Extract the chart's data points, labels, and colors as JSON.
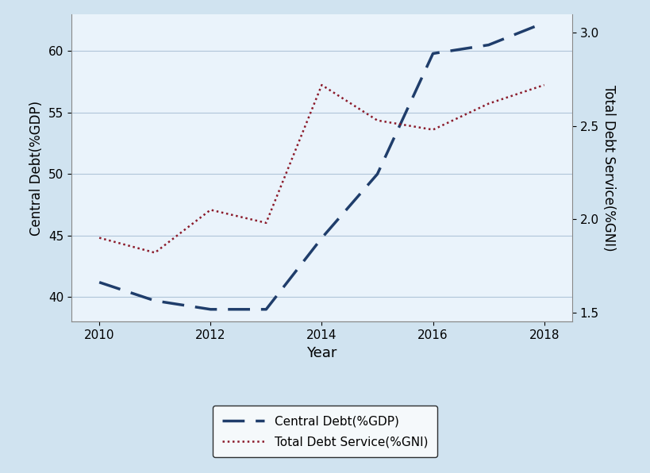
{
  "years": [
    2010,
    2011,
    2012,
    2013,
    2014,
    2015,
    2016,
    2017,
    2018
  ],
  "central_debt": [
    41.2,
    39.7,
    39.0,
    39.0,
    44.8,
    50.0,
    59.8,
    60.5,
    62.3
  ],
  "total_debt_service": [
    1.9,
    1.82,
    2.05,
    1.98,
    2.72,
    2.53,
    2.48,
    2.62,
    2.72
  ],
  "left_ylabel": "Central Debt(%GDP)",
  "right_ylabel": "Total Debt Service(%GNI)",
  "xlabel": "Year",
  "left_ylim": [
    38,
    63
  ],
  "left_yticks": [
    40,
    45,
    50,
    55,
    60
  ],
  "right_ylim": [
    1.45,
    3.1
  ],
  "right_yticks": [
    1.5,
    2.0,
    2.5,
    3.0
  ],
  "xlim": [
    2009.5,
    2018.5
  ],
  "xticks": [
    2010,
    2012,
    2014,
    2016,
    2018
  ],
  "line1_color": "#1f3d6b",
  "line2_color": "#8b1a2a",
  "background_color": "#d0e3f0",
  "plot_bg_color": "#eaf3fb",
  "legend_label1": "Central Debt(%GDP)",
  "legend_label2": "Total Debt Service(%GNI)",
  "grid_color": "#b0c4d8"
}
